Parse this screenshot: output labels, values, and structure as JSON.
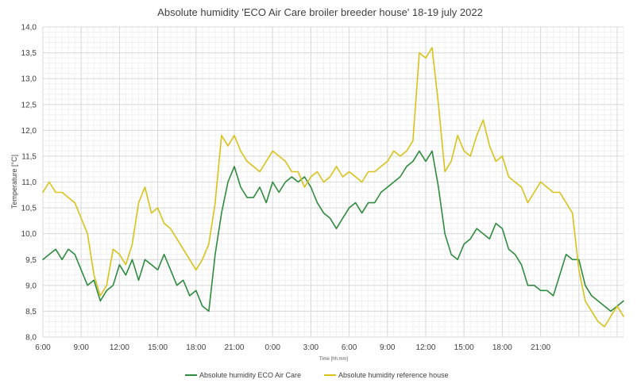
{
  "chart_data": {
    "type": "line",
    "title": "Absolute humidity 'ECO Air Care broiler breeder house' 18-19 july 2022",
    "xlabel": "Time [hh:mm]",
    "ylabel": "Temperature [°C]",
    "x_unit": "hours since 06:00 on 18 July",
    "x_range": [
      0,
      45.5
    ],
    "x_ticks": [
      "6:00",
      "9:00",
      "12:00",
      "15:00",
      "18:00",
      "21:00",
      "0:00",
      "3:00",
      "6:00",
      "9:00",
      "12:00",
      "15:00",
      "18:00",
      "21:00"
    ],
    "ylim": [
      8.0,
      14.0
    ],
    "y_ticks": [
      "8,0",
      "8,5",
      "9,0",
      "9,5",
      "10,0",
      "10,5",
      "11,0",
      "11,5",
      "12,0",
      "12,5",
      "13,0",
      "13,5",
      "14,0"
    ],
    "grid": true,
    "legend_position": "bottom",
    "series": [
      {
        "name": "Absolute humidity ECO Air Care",
        "color": "#2e8b3e",
        "x": [
          0,
          0.5,
          1,
          1.5,
          2,
          2.5,
          3,
          3.5,
          4,
          4.5,
          5,
          5.5,
          6,
          6.5,
          7,
          7.5,
          8,
          8.5,
          9,
          9.5,
          10,
          10.5,
          11,
          11.5,
          12,
          12.5,
          13,
          13.5,
          14,
          14.5,
          15,
          15.5,
          16,
          16.5,
          17,
          17.5,
          18,
          18.5,
          19,
          19.5,
          20,
          20.5,
          21,
          21.5,
          22,
          22.5,
          23,
          23.5,
          24,
          24.5,
          25,
          25.5,
          26,
          26.5,
          27,
          27.5,
          28,
          28.5,
          29,
          29.5,
          30,
          30.5,
          31,
          31.5,
          32,
          32.5,
          33,
          33.5,
          34,
          34.5,
          35,
          35.5,
          36,
          36.5,
          37,
          37.5,
          38,
          38.5,
          39,
          39.5,
          40,
          40.5,
          41,
          41.5,
          42,
          42.5,
          43,
          43.5,
          44,
          44.5,
          45,
          45.5
        ],
        "values": [
          9.5,
          9.6,
          9.7,
          9.5,
          9.7,
          9.6,
          9.3,
          9.0,
          9.1,
          8.7,
          8.9,
          9.0,
          9.4,
          9.2,
          9.5,
          9.1,
          9.5,
          9.4,
          9.3,
          9.6,
          9.3,
          9.0,
          9.1,
          8.8,
          8.9,
          8.6,
          8.5,
          9.6,
          10.4,
          11.0,
          11.3,
          10.9,
          10.7,
          10.7,
          10.9,
          10.6,
          11.0,
          10.8,
          11.0,
          11.1,
          11.0,
          11.1,
          10.9,
          10.6,
          10.4,
          10.3,
          10.1,
          10.3,
          10.5,
          10.6,
          10.4,
          10.6,
          10.6,
          10.8,
          10.9,
          11.0,
          11.1,
          11.3,
          11.4,
          11.6,
          11.4,
          11.6,
          10.9,
          10.0,
          9.6,
          9.5,
          9.8,
          9.9,
          10.1,
          10.0,
          9.9,
          10.2,
          10.1,
          9.7,
          9.6,
          9.4,
          9.0,
          9.0,
          8.9,
          8.9,
          8.8,
          9.2,
          9.6,
          9.5,
          9.5,
          9.0,
          8.8,
          8.7,
          8.6,
          8.5,
          8.6,
          8.7
        ]
      },
      {
        "name": "Absolute humidity reference house",
        "color": "#d8c21a",
        "x": [
          0,
          0.5,
          1,
          1.5,
          2,
          2.5,
          3,
          3.5,
          4,
          4.5,
          5,
          5.5,
          6,
          6.5,
          7,
          7.5,
          8,
          8.5,
          9,
          9.5,
          10,
          10.5,
          11,
          11.5,
          12,
          12.5,
          13,
          13.5,
          14,
          14.5,
          15,
          15.5,
          16,
          16.5,
          17,
          17.5,
          18,
          18.5,
          19,
          19.5,
          20,
          20.5,
          21,
          21.5,
          22,
          22.5,
          23,
          23.5,
          24,
          24.5,
          25,
          25.5,
          26,
          26.5,
          27,
          27.5,
          28,
          28.5,
          29,
          29.5,
          30,
          30.5,
          31,
          31.5,
          32,
          32.5,
          33,
          33.5,
          34,
          34.5,
          35,
          35.5,
          36,
          36.5,
          37,
          37.5,
          38,
          38.5,
          39,
          39.5,
          40,
          40.5,
          41,
          41.5,
          42,
          42.5,
          43,
          43.5,
          44,
          44.5,
          45,
          45.5
        ],
        "values": [
          10.8,
          11.0,
          10.8,
          10.8,
          10.7,
          10.6,
          10.3,
          10.0,
          9.2,
          8.8,
          9.0,
          9.7,
          9.6,
          9.4,
          9.8,
          10.6,
          10.9,
          10.4,
          10.5,
          10.2,
          10.1,
          9.9,
          9.7,
          9.5,
          9.3,
          9.5,
          9.8,
          10.6,
          11.9,
          11.7,
          11.9,
          11.6,
          11.4,
          11.3,
          11.2,
          11.4,
          11.6,
          11.5,
          11.4,
          11.2,
          11.2,
          10.9,
          11.1,
          11.2,
          11.0,
          11.1,
          11.3,
          11.1,
          11.2,
          11.1,
          11.0,
          11.2,
          11.2,
          11.3,
          11.4,
          11.6,
          11.5,
          11.6,
          11.8,
          13.5,
          13.4,
          13.6,
          12.5,
          11.2,
          11.4,
          11.9,
          11.6,
          11.5,
          11.9,
          12.2,
          11.7,
          11.4,
          11.5,
          11.1,
          11.0,
          10.9,
          10.6,
          10.8,
          11.0,
          10.9,
          10.8,
          10.8,
          10.6,
          10.4,
          9.3,
          8.7,
          8.5,
          8.3,
          8.2,
          8.4,
          8.6,
          8.4
        ]
      }
    ]
  }
}
